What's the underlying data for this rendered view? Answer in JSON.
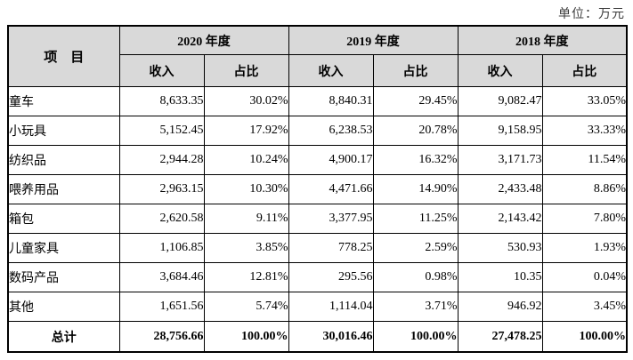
{
  "unit_label": "单位：万元",
  "table": {
    "item_header": "项　目",
    "year_groups": [
      {
        "label": "2020 年度"
      },
      {
        "label": "2019 年度"
      },
      {
        "label": "2018 年度"
      }
    ],
    "sub_headers": {
      "revenue": "收入",
      "ratio": "占比"
    },
    "rows": [
      {
        "name": "童车",
        "v": [
          "8,633.35",
          "30.02%",
          "8,840.31",
          "29.45%",
          "9,082.47",
          "33.05%"
        ]
      },
      {
        "name": "小玩具",
        "v": [
          "5,152.45",
          "17.92%",
          "6,238.53",
          "20.78%",
          "9,158.95",
          "33.33%"
        ]
      },
      {
        "name": "纺织品",
        "v": [
          "2,944.28",
          "10.24%",
          "4,900.17",
          "16.32%",
          "3,171.73",
          "11.54%"
        ]
      },
      {
        "name": "喂养用品",
        "v": [
          "2,963.15",
          "10.30%",
          "4,471.66",
          "14.90%",
          "2,433.48",
          "8.86%"
        ]
      },
      {
        "name": "箱包",
        "v": [
          "2,620.58",
          "9.11%",
          "3,377.95",
          "11.25%",
          "2,143.42",
          "7.80%"
        ]
      },
      {
        "name": "儿童家具",
        "v": [
          "1,106.85",
          "3.85%",
          "778.25",
          "2.59%",
          "530.93",
          "1.93%"
        ]
      },
      {
        "name": "数码产品",
        "v": [
          "3,684.46",
          "12.81%",
          "295.56",
          "0.98%",
          "10.35",
          "0.04%"
        ]
      },
      {
        "name": "其他",
        "v": [
          "1,651.56",
          "5.74%",
          "1,114.04",
          "3.71%",
          "946.92",
          "3.45%"
        ]
      }
    ],
    "total": {
      "name": "总计",
      "v": [
        "28,756.66",
        "100.00%",
        "30,016.46",
        "100.00%",
        "27,478.25",
        "100.00%"
      ]
    }
  },
  "colors": {
    "header_bg": "#d9d9d9",
    "border": "#000000",
    "unit_text": "#3c3c3c"
  }
}
